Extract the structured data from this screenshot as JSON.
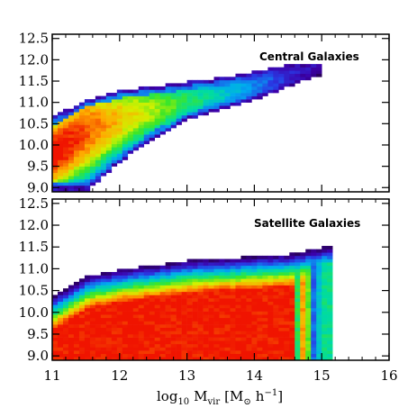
{
  "chart_data": [
    {
      "type": "heatmap",
      "annotation": "Central Galaxies",
      "xlim": [
        11,
        16
      ],
      "ylim": [
        8.9,
        12.6
      ],
      "y_ticks": [
        9.0,
        9.5,
        10.0,
        10.5,
        11.0,
        11.5,
        12.0,
        12.5
      ],
      "y_tick_labels": [
        "9.0",
        "9.5",
        "10.0",
        "10.5",
        "11.0",
        "11.5",
        "12.0",
        "12.5"
      ],
      "ridge": {
        "x": [
          11.0,
          11.5,
          12.0,
          12.5,
          13.0,
          13.5,
          14.0,
          14.5,
          14.9
        ],
        "y": [
          9.8,
          10.3,
          10.6,
          10.8,
          11.0,
          11.15,
          11.35,
          11.6,
          11.8
        ]
      },
      "upper_edge": {
        "x": [
          11.0,
          11.5,
          12.0,
          12.5,
          13.0,
          13.5,
          14.0,
          14.5,
          14.95
        ],
        "y": [
          10.65,
          11.05,
          11.25,
          11.35,
          11.45,
          11.55,
          11.7,
          11.85,
          11.9
        ]
      },
      "lower_edge": {
        "x": [
          11.0,
          11.5,
          12.0,
          12.5,
          13.0,
          13.5,
          14.0,
          14.5,
          14.95
        ],
        "y": [
          8.9,
          8.9,
          9.6,
          10.15,
          10.55,
          10.8,
          11.05,
          11.35,
          11.6
        ]
      }
    },
    {
      "type": "heatmap",
      "annotation": "Satellite Galaxies",
      "xlim": [
        11,
        16
      ],
      "ylim": [
        8.9,
        12.6
      ],
      "y_ticks": [
        9.0,
        9.5,
        10.0,
        10.5,
        11.0,
        11.5,
        12.0,
        12.5
      ],
      "y_tick_labels": [
        "9.0",
        "9.5",
        "10.0",
        "10.5",
        "11.0",
        "11.5",
        "12.0",
        "12.5"
      ],
      "x_ticks": [
        11,
        12,
        13,
        14,
        15,
        16
      ],
      "x_tick_labels": [
        "11",
        "12",
        "13",
        "14",
        "15",
        "16"
      ],
      "xlabel": "log10 Mvir [M⊙ h−1]",
      "upper_edge": {
        "x": [
          11.0,
          11.5,
          12.0,
          12.5,
          13.0,
          13.5,
          14.0,
          14.5,
          15.0
        ],
        "y": [
          10.35,
          10.8,
          10.95,
          11.05,
          11.15,
          11.2,
          11.25,
          11.3,
          11.45
        ]
      },
      "x_max": 15.1
    }
  ],
  "labels": {
    "panel1_annotation": "Central Galaxies",
    "panel2_annotation": "Satellite Galaxies",
    "xlabel_main": "log",
    "xlabel_sub10": "10",
    "xlabel_M": "M",
    "xlabel_vir": "vir",
    "xlabel_units_open": "[M",
    "xlabel_sun": "⊙",
    "xlabel_h": "h",
    "xlabel_exp": "−1",
    "xlabel_close": "]"
  }
}
